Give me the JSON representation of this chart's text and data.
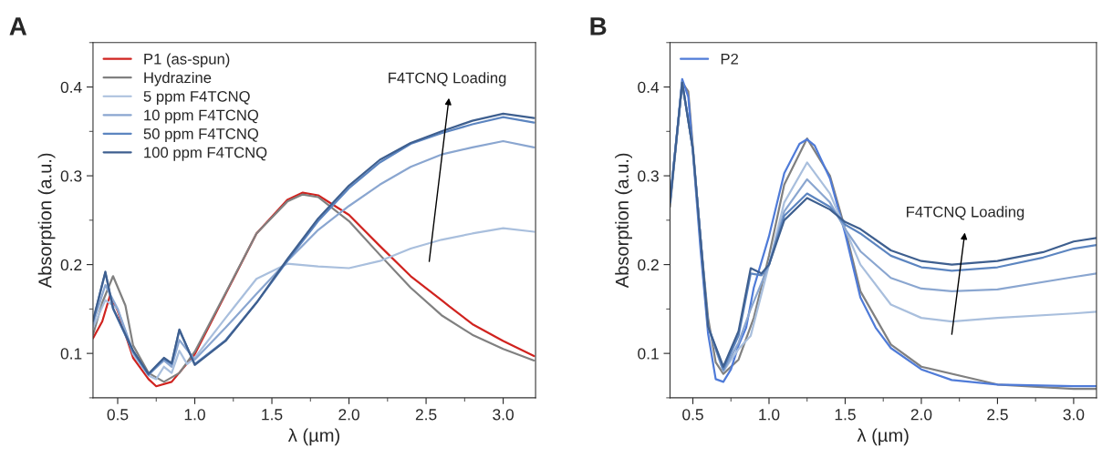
{
  "chart_data": [
    {
      "type": "line",
      "title": "A",
      "xlabel": "λ (µm)",
      "ylabel": "Absorption (a.u.)",
      "xlim": [
        0.34,
        3.21
      ],
      "ylim": [
        0.05,
        0.45
      ],
      "xticks": [
        0.5,
        {
          "value": 1,
          "label": "1.0"
        },
        1.5,
        {
          "value": 2,
          "label": "2.0"
        },
        2.5,
        {
          "value": 3,
          "label": "3.0"
        }
      ],
      "yticks": [
        0.1,
        0.2,
        0.3,
        0.4
      ],
      "grid": false,
      "legend": "top left",
      "marker": "none",
      "line_style": "solid",
      "annotations": [
        "F4TCNQ Loading"
      ],
      "series": [
        {
          "name": "P1 (as-spun)",
          "color": "#d0231f",
          "x": [
            0.34,
            0.4,
            0.45,
            0.5,
            0.6,
            0.7,
            0.75,
            0.85,
            1.0,
            1.2,
            1.4,
            1.6,
            1.7,
            1.8,
            2.0,
            2.2,
            2.4,
            2.6,
            2.65,
            2.8,
            3.0,
            3.2
          ],
          "values": [
            0.117,
            0.136,
            0.165,
            0.148,
            0.095,
            0.071,
            0.063,
            0.068,
            0.099,
            0.167,
            0.235,
            0.273,
            0.281,
            0.278,
            0.256,
            0.221,
            0.187,
            0.16,
            0.153,
            0.133,
            0.114,
            0.097
          ]
        },
        {
          "name": "Hydrazine",
          "color": "#808080",
          "x": [
            0.34,
            0.4,
            0.47,
            0.55,
            0.6,
            0.7,
            0.8,
            0.9,
            1.0,
            1.2,
            1.4,
            1.6,
            1.7,
            1.8,
            2.0,
            2.2,
            2.4,
            2.6,
            2.8,
            3.0,
            3.2
          ],
          "values": [
            0.121,
            0.157,
            0.187,
            0.154,
            0.109,
            0.078,
            0.068,
            0.078,
            0.102,
            0.168,
            0.235,
            0.271,
            0.279,
            0.276,
            0.249,
            0.211,
            0.174,
            0.143,
            0.121,
            0.105,
            0.092
          ]
        },
        {
          "name": "5 ppm F4TCNQ",
          "color": "#a9bfdd",
          "x": [
            0.34,
            0.42,
            0.5,
            0.6,
            0.7,
            0.75,
            0.8,
            0.85,
            0.9,
            0.95,
            1.0,
            1.2,
            1.4,
            1.6,
            1.8,
            2.0,
            2.2,
            2.4,
            2.6,
            2.8,
            3.0,
            3.2
          ],
          "values": [
            0.129,
            0.16,
            0.15,
            0.099,
            0.075,
            0.071,
            0.085,
            0.078,
            0.103,
            0.088,
            0.095,
            0.14,
            0.184,
            0.201,
            0.198,
            0.196,
            0.204,
            0.218,
            0.228,
            0.235,
            0.241,
            0.237
          ]
        },
        {
          "name": "10 ppm F4TCNQ",
          "color": "#8aa6d0",
          "x": [
            0.34,
            0.42,
            0.5,
            0.6,
            0.7,
            0.8,
            0.85,
            0.9,
            1.0,
            1.2,
            1.4,
            1.6,
            1.8,
            2.0,
            2.2,
            2.4,
            2.6,
            2.8,
            3.0,
            3.2
          ],
          "values": [
            0.133,
            0.177,
            0.15,
            0.102,
            0.076,
            0.092,
            0.085,
            0.115,
            0.093,
            0.129,
            0.167,
            0.204,
            0.239,
            0.266,
            0.29,
            0.31,
            0.324,
            0.332,
            0.339,
            0.332
          ]
        },
        {
          "name": "50 ppm F4TCNQ",
          "color": "#5c85c0",
          "x": [
            0.34,
            0.42,
            0.47,
            0.6,
            0.7,
            0.8,
            0.85,
            0.9,
            1.0,
            1.2,
            1.4,
            1.6,
            1.8,
            2.0,
            2.2,
            2.4,
            2.6,
            2.8,
            3.0,
            3.2
          ],
          "values": [
            0.136,
            0.191,
            0.15,
            0.102,
            0.076,
            0.094,
            0.088,
            0.126,
            0.088,
            0.115,
            0.157,
            0.204,
            0.249,
            0.286,
            0.315,
            0.336,
            0.348,
            0.358,
            0.366,
            0.36
          ]
        },
        {
          "name": "100 ppm F4TCNQ",
          "color": "#3e5f8f",
          "x": [
            0.34,
            0.42,
            0.47,
            0.6,
            0.7,
            0.8,
            0.85,
            0.9,
            1.0,
            1.2,
            1.4,
            1.6,
            1.8,
            2.0,
            2.2,
            2.4,
            2.6,
            2.8,
            3.0,
            3.2
          ],
          "values": [
            0.137,
            0.192,
            0.151,
            0.103,
            0.077,
            0.095,
            0.089,
            0.127,
            0.087,
            0.114,
            0.157,
            0.206,
            0.252,
            0.289,
            0.318,
            0.337,
            0.35,
            0.362,
            0.37,
            0.365
          ]
        }
      ]
    },
    {
      "type": "line",
      "title": "B",
      "xlabel": "λ (µm)",
      "ylabel": "Absorption (a.u.)",
      "xlim": [
        0.35,
        3.15
      ],
      "ylim": [
        0.05,
        0.45
      ],
      "xticks": [
        0.5,
        {
          "value": 1,
          "label": "1.0"
        },
        1.5,
        {
          "value": 2,
          "label": "2.0"
        },
        2.5,
        {
          "value": 3,
          "label": "3.0"
        }
      ],
      "yticks": [
        0.1,
        0.2,
        0.3,
        0.4
      ],
      "grid": false,
      "legend": "top left",
      "marker": "none",
      "line_style": "solid",
      "annotations": [
        "F4TCNQ Loading"
      ],
      "series": [
        {
          "color": "#808080",
          "x": [
            0.35,
            0.43,
            0.47,
            0.55,
            0.6,
            0.65,
            0.7,
            0.8,
            0.9,
            1.0,
            1.1,
            1.25,
            1.4,
            1.5,
            1.6,
            1.8,
            2.0,
            2.5,
            3.0,
            3.15
          ],
          "values": [
            0.265,
            0.405,
            0.395,
            0.23,
            0.14,
            0.09,
            0.077,
            0.093,
            0.14,
            0.21,
            0.29,
            0.342,
            0.3,
            0.24,
            0.17,
            0.11,
            0.085,
            0.065,
            0.06,
            0.06
          ]
        },
        {
          "name": "P2",
          "color": "#4f7bd8",
          "x": [
            0.35,
            0.4,
            0.43,
            0.47,
            0.5,
            0.55,
            0.6,
            0.65,
            0.7,
            0.75,
            0.8,
            0.85,
            0.9,
            1.0,
            1.1,
            1.2,
            1.25,
            1.3,
            1.4,
            1.5,
            1.6,
            1.7,
            1.8,
            2.0,
            2.2,
            2.5,
            3.0,
            3.15
          ],
          "values": [
            0.273,
            0.355,
            0.409,
            0.389,
            0.327,
            0.218,
            0.122,
            0.071,
            0.068,
            0.082,
            0.109,
            0.129,
            0.174,
            0.232,
            0.303,
            0.336,
            0.341,
            0.334,
            0.297,
            0.235,
            0.163,
            0.129,
            0.106,
            0.082,
            0.07,
            0.065,
            0.063,
            0.063
          ]
        },
        {
          "color": "#a9bfdd",
          "x": [
            0.35,
            0.43,
            0.5,
            0.6,
            0.7,
            0.8,
            0.88,
            1.0,
            1.1,
            1.25,
            1.4,
            1.5,
            1.6,
            1.8,
            2.0,
            2.2,
            2.5,
            3.0,
            3.15
          ],
          "values": [
            0.27,
            0.405,
            0.33,
            0.13,
            0.08,
            0.105,
            0.12,
            0.2,
            0.27,
            0.315,
            0.28,
            0.24,
            0.2,
            0.155,
            0.14,
            0.136,
            0.14,
            0.145,
            0.147
          ]
        },
        {
          "color": "#8aa6d0",
          "x": [
            0.35,
            0.43,
            0.5,
            0.6,
            0.7,
            0.8,
            0.88,
            1.0,
            1.1,
            1.25,
            1.4,
            1.5,
            1.6,
            1.8,
            2.0,
            2.2,
            2.5,
            3.0,
            3.15
          ],
          "values": [
            0.27,
            0.405,
            0.33,
            0.13,
            0.08,
            0.112,
            0.15,
            0.2,
            0.26,
            0.296,
            0.27,
            0.24,
            0.215,
            0.185,
            0.173,
            0.17,
            0.172,
            0.186,
            0.19
          ]
        },
        {
          "color": "#5c85c0",
          "x": [
            0.35,
            0.43,
            0.5,
            0.6,
            0.7,
            0.8,
            0.88,
            0.95,
            1.0,
            1.1,
            1.25,
            1.4,
            1.5,
            1.6,
            1.8,
            2.0,
            2.2,
            2.5,
            2.8,
            3.0,
            3.15
          ],
          "values": [
            0.27,
            0.405,
            0.33,
            0.13,
            0.082,
            0.12,
            0.19,
            0.188,
            0.2,
            0.255,
            0.28,
            0.265,
            0.245,
            0.235,
            0.21,
            0.197,
            0.193,
            0.197,
            0.208,
            0.218,
            0.222
          ]
        },
        {
          "color": "#3e5f8f",
          "x": [
            0.35,
            0.43,
            0.5,
            0.6,
            0.7,
            0.8,
            0.88,
            0.95,
            1.0,
            1.1,
            1.25,
            1.4,
            1.5,
            1.6,
            1.8,
            2.0,
            2.2,
            2.5,
            2.8,
            3.0,
            3.15
          ],
          "values": [
            0.27,
            0.405,
            0.33,
            0.13,
            0.085,
            0.125,
            0.196,
            0.19,
            0.2,
            0.25,
            0.275,
            0.262,
            0.248,
            0.24,
            0.216,
            0.204,
            0.2,
            0.204,
            0.214,
            0.226,
            0.23
          ]
        }
      ]
    }
  ]
}
